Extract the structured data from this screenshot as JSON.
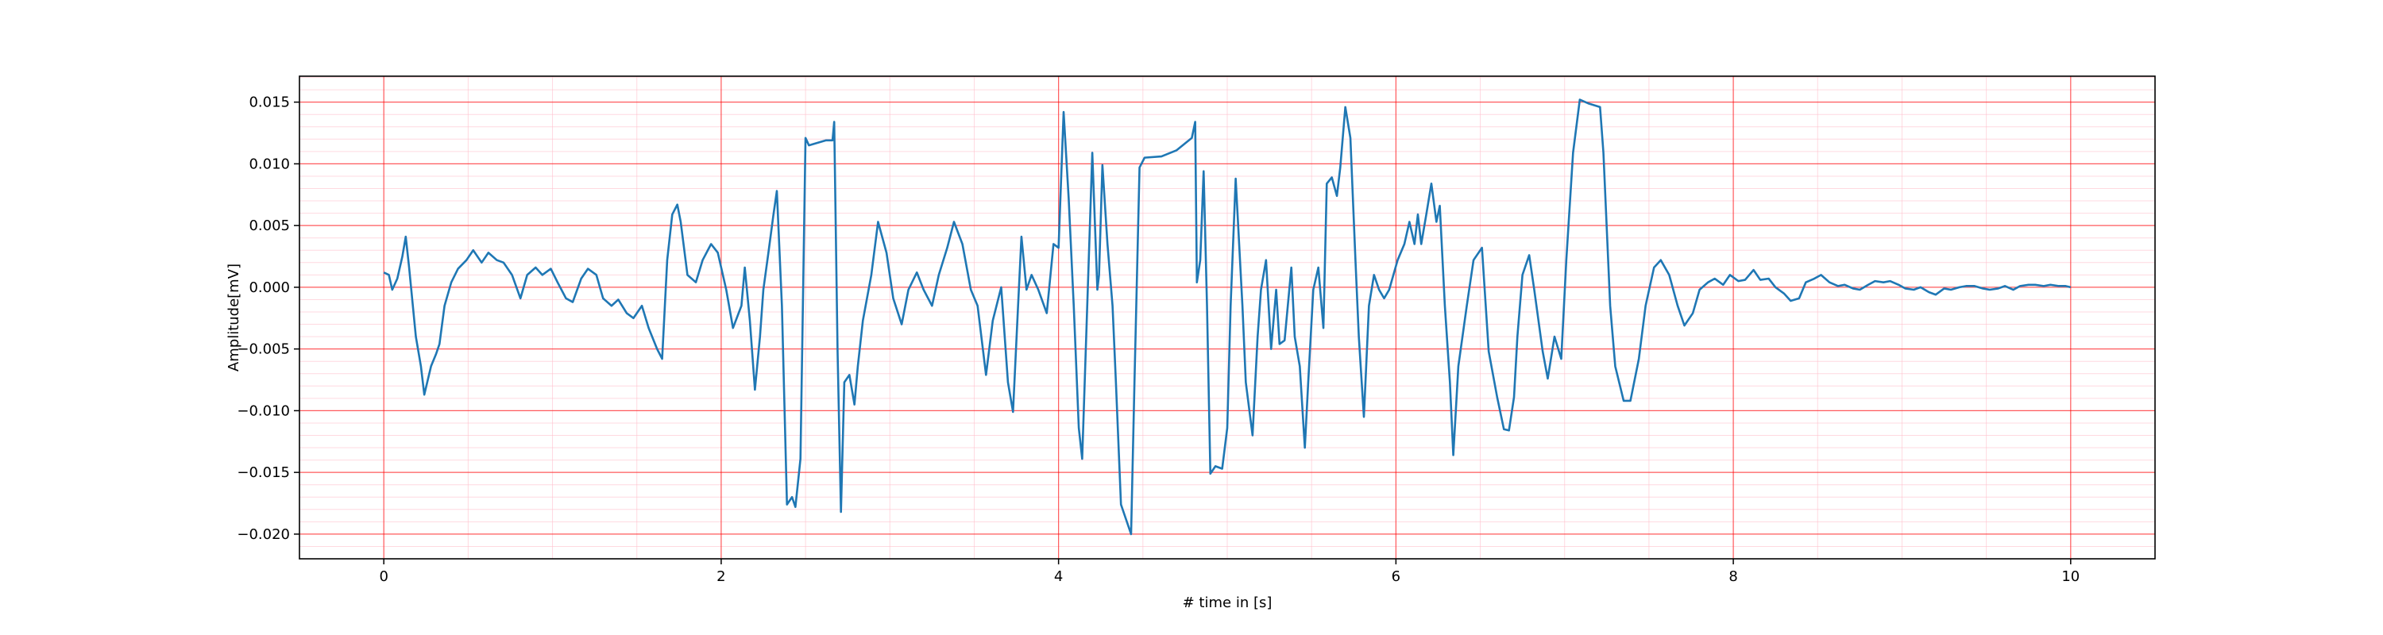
{
  "chart_data": {
    "type": "line",
    "xlabel": "# time in [s]",
    "ylabel": "Amplitude[mV]",
    "x": [
      0.0,
      0.03,
      0.05,
      0.08,
      0.11,
      0.13,
      0.15,
      0.19,
      0.22,
      0.24,
      0.28,
      0.31,
      0.33,
      0.36,
      0.4,
      0.44,
      0.49,
      0.53,
      0.58,
      0.62,
      0.67,
      0.71,
      0.76,
      0.81,
      0.85,
      0.9,
      0.94,
      0.99,
      1.03,
      1.08,
      1.12,
      1.17,
      1.21,
      1.26,
      1.3,
      1.35,
      1.39,
      1.44,
      1.48,
      1.53,
      1.57,
      1.62,
      1.65,
      1.68,
      1.71,
      1.74,
      1.76,
      1.8,
      1.85,
      1.89,
      1.94,
      1.98,
      2.03,
      2.07,
      2.12,
      2.14,
      2.17,
      2.2,
      2.23,
      2.25,
      2.28,
      2.31,
      2.33,
      2.36,
      2.39,
      2.42,
      2.44,
      2.47,
      2.5,
      2.52,
      2.62,
      2.66,
      2.67,
      2.69,
      2.71,
      2.73,
      2.76,
      2.79,
      2.81,
      2.84,
      2.89,
      2.93,
      2.98,
      3.02,
      3.07,
      3.11,
      3.16,
      3.2,
      3.25,
      3.29,
      3.34,
      3.38,
      3.43,
      3.48,
      3.52,
      3.57,
      3.61,
      3.66,
      3.7,
      3.73,
      3.76,
      3.78,
      3.81,
      3.84,
      3.88,
      3.93,
      3.97,
      4.0,
      4.03,
      4.06,
      4.09,
      4.12,
      4.14,
      4.17,
      4.2,
      4.23,
      4.24,
      4.26,
      4.29,
      4.32,
      4.34,
      4.37,
      4.4,
      4.43,
      4.45,
      4.48,
      4.51,
      4.61,
      4.7,
      4.79,
      4.81,
      4.82,
      4.84,
      4.86,
      4.88,
      4.9,
      4.93,
      4.97,
      5.0,
      5.02,
      5.05,
      5.09,
      5.11,
      5.15,
      5.18,
      5.2,
      5.23,
      5.26,
      5.29,
      5.31,
      5.34,
      5.38,
      5.4,
      5.43,
      5.46,
      5.48,
      5.51,
      5.54,
      5.57,
      5.59,
      5.62,
      5.65,
      5.67,
      5.7,
      5.73,
      5.76,
      5.78,
      5.81,
      5.84,
      5.87,
      5.9,
      5.93,
      5.96,
      6.01,
      6.05,
      6.08,
      6.11,
      6.13,
      6.15,
      6.18,
      6.21,
      6.24,
      6.26,
      6.29,
      6.32,
      6.34,
      6.37,
      6.42,
      6.46,
      6.51,
      6.55,
      6.6,
      6.64,
      6.67,
      6.7,
      6.72,
      6.75,
      6.79,
      6.82,
      6.87,
      6.9,
      6.94,
      6.98,
      7.01,
      7.05,
      7.09,
      7.14,
      7.21,
      7.23,
      7.27,
      7.3,
      7.35,
      7.39,
      7.44,
      7.48,
      7.53,
      7.57,
      7.62,
      7.67,
      7.71,
      7.76,
      7.8,
      7.85,
      7.89,
      7.94,
      7.98,
      8.03,
      8.07,
      8.12,
      8.16,
      8.21,
      8.25,
      8.3,
      8.34,
      8.39,
      8.43,
      8.48,
      8.52,
      8.57,
      8.62,
      8.66,
      8.71,
      8.75,
      8.8,
      8.84,
      8.89,
      8.93,
      8.98,
      9.02,
      9.07,
      9.11,
      9.16,
      9.2,
      9.25,
      9.29,
      9.34,
      9.38,
      9.43,
      9.48,
      9.52,
      9.57,
      9.61,
      9.66,
      9.7,
      9.75,
      9.79,
      9.84,
      9.88,
      9.93,
      9.97,
      10.0
    ],
    "series": [
      {
        "color": "#1f77b4",
        "values": [
          0.0012,
          0.001,
          -0.0002,
          0.0007,
          0.0025,
          0.0041,
          0.0016,
          -0.004,
          -0.0064,
          -0.0087,
          -0.0064,
          -0.0054,
          -0.0046,
          -0.0015,
          0.0004,
          0.0015,
          0.0022,
          0.003,
          0.002,
          0.0028,
          0.0022,
          0.002,
          0.001,
          -0.0009,
          0.001,
          0.0016,
          0.001,
          0.0015,
          0.0004,
          -0.0009,
          -0.0012,
          0.0007,
          0.0015,
          0.001,
          -0.0009,
          -0.0015,
          -0.001,
          -0.0021,
          -0.0025,
          -0.0015,
          -0.0033,
          -0.005,
          -0.0058,
          0.0022,
          0.0059,
          0.0067,
          0.0053,
          0.001,
          0.0004,
          0.0022,
          0.0035,
          0.0028,
          -0.0002,
          -0.0033,
          -0.0015,
          0.0016,
          -0.0027,
          -0.0083,
          -0.004,
          -0.0002,
          0.0028,
          0.0059,
          0.0078,
          -0.0015,
          -0.0176,
          -0.017,
          -0.0178,
          -0.0139,
          0.0121,
          0.0115,
          0.0119,
          0.0119,
          0.0134,
          -0.0052,
          -0.0182,
          -0.0077,
          -0.0071,
          -0.0095,
          -0.0064,
          -0.0027,
          0.001,
          0.0053,
          0.0028,
          -0.0009,
          -0.003,
          -0.0002,
          0.0012,
          -0.0002,
          -0.0015,
          0.001,
          0.0032,
          0.0053,
          0.0035,
          -0.0002,
          -0.0015,
          -0.0071,
          -0.0027,
          0.0,
          -0.0077,
          -0.0101,
          -0.0015,
          0.0041,
          -0.0002,
          0.001,
          -0.0002,
          -0.0021,
          0.0035,
          0.0032,
          0.0142,
          0.0072,
          -0.0015,
          -0.0114,
          -0.0139,
          -0.0015,
          0.0109,
          -0.0002,
          0.001,
          0.0099,
          0.0035,
          -0.0015,
          -0.0077,
          -0.0176,
          -0.0188,
          -0.02,
          -0.0077,
          0.0097,
          0.0105,
          0.0106,
          0.0111,
          0.0121,
          0.0134,
          0.0004,
          0.0022,
          0.0094,
          -0.0015,
          -0.0151,
          -0.0145,
          -0.0147,
          -0.0114,
          -0.0015,
          0.0088,
          -0.0015,
          -0.0077,
          -0.012,
          -0.004,
          -0.0002,
          0.0022,
          -0.005,
          -0.0002,
          -0.0046,
          -0.0043,
          0.0016,
          -0.004,
          -0.0064,
          -0.013,
          -0.0077,
          -0.0002,
          0.0016,
          -0.0033,
          0.0084,
          0.0089,
          0.0074,
          0.0097,
          0.0146,
          0.0121,
          0.0022,
          -0.004,
          -0.0105,
          -0.0015,
          0.001,
          -0.0002,
          -0.0009,
          -0.0002,
          0.0022,
          0.0035,
          0.0053,
          0.0035,
          0.0059,
          0.0035,
          0.0059,
          0.0084,
          0.0053,
          0.0066,
          -0.0015,
          -0.0077,
          -0.0136,
          -0.0064,
          -0.0015,
          0.0022,
          0.0032,
          -0.0052,
          -0.0089,
          -0.0115,
          -0.0116,
          -0.0089,
          -0.004,
          0.001,
          0.0026,
          -0.0002,
          -0.0052,
          -0.0074,
          -0.004,
          -0.0058,
          0.0022,
          0.0109,
          0.0152,
          0.0149,
          0.0146,
          0.0109,
          -0.0015,
          -0.0064,
          -0.0092,
          -0.0092,
          -0.0058,
          -0.0015,
          0.0016,
          0.0022,
          0.001,
          -0.0015,
          -0.0031,
          -0.0021,
          -0.0002,
          0.0004,
          0.0007,
          0.0002,
          0.001,
          0.0005,
          0.0006,
          0.0014,
          0.0006,
          0.0007,
          0.0,
          -0.0005,
          -0.0011,
          -0.0009,
          0.0004,
          0.0007,
          0.001,
          0.0004,
          0.0001,
          0.0002,
          -0.0001,
          -0.0002,
          0.0002,
          0.0005,
          0.0004,
          0.0005,
          0.0002,
          -0.0001,
          -0.0002,
          0.0,
          -0.0004,
          -0.0006,
          -0.0001,
          -0.0002,
          0.0,
          0.0001,
          0.0001,
          -0.0001,
          -0.0002,
          -0.0001,
          0.0001,
          -0.0002,
          0.0001,
          0.0002,
          0.0002,
          0.0001,
          0.0002,
          0.0001,
          0.0001,
          0.0
        ]
      }
    ],
    "xlim": [
      -0.5,
      10.5
    ],
    "xticks": [
      0,
      2,
      4,
      6,
      8,
      10
    ],
    "ylim": [
      -0.022,
      0.0171
    ],
    "yticks": [
      {
        "value": -0.02,
        "label": "−0.020"
      },
      {
        "value": -0.015,
        "label": "−0.015"
      },
      {
        "value": -0.01,
        "label": "−0.010"
      },
      {
        "value": -0.005,
        "label": "−0.005"
      },
      {
        "value": 0,
        "label": "0.000"
      },
      0.005,
      {
        "value": 0.01,
        "label": "0.010"
      },
      0.015
    ],
    "grid": true,
    "minor_grid": true,
    "grid_color": "#ff0000",
    "minor_grid_color": "#ffc0cb"
  }
}
